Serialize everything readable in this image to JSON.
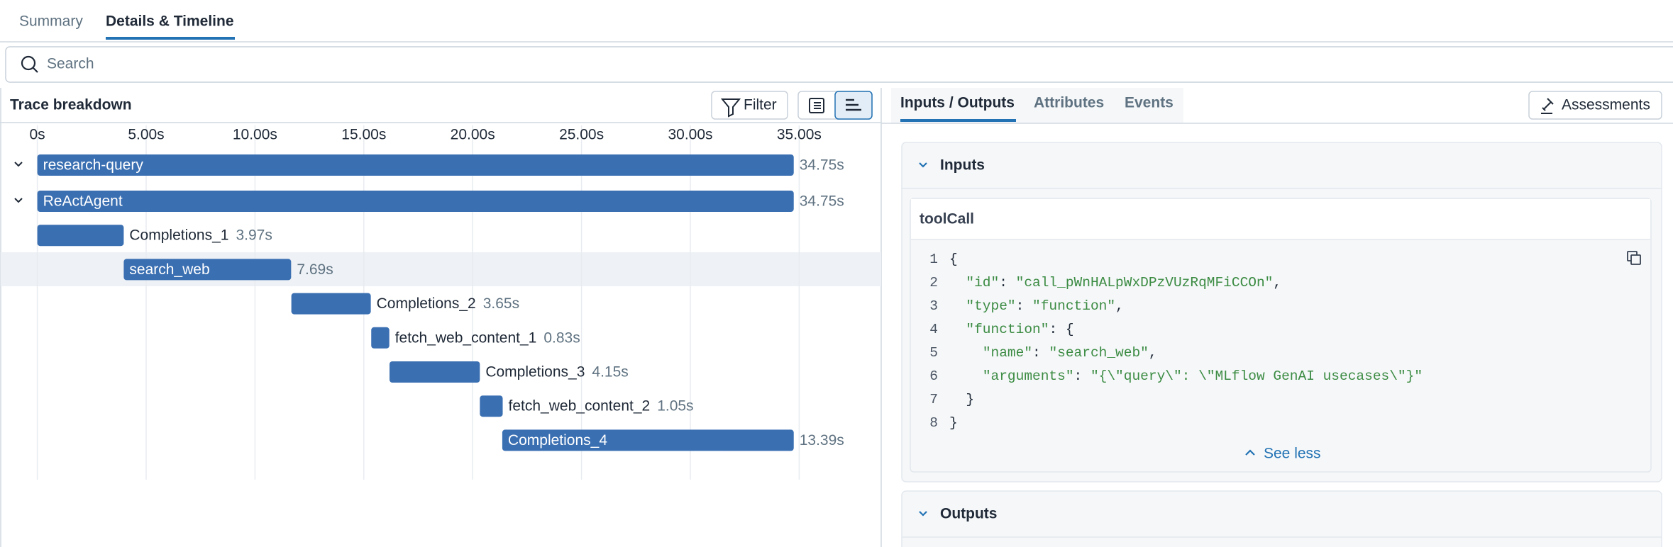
{
  "tabs": [
    "Summary",
    "Details & Timeline"
  ],
  "search_placeholder": "Search",
  "trace": {
    "title": "Trace breakdown",
    "filter": "Filter",
    "timeline": {
      "xlim": [
        0,
        38
      ],
      "xticks": [
        {
          "value": 0,
          "label": "0s"
        },
        {
          "value": 5,
          "label": "5.00s"
        },
        {
          "value": 10,
          "label": "10.00s"
        },
        {
          "value": 15,
          "label": "15.00s"
        },
        {
          "value": 20,
          "label": "20.00s"
        },
        {
          "value": 25,
          "label": "25.00s"
        },
        {
          "value": 30,
          "label": "30.00s"
        },
        {
          "value": 35,
          "label": "35.00s"
        }
      ],
      "spans": [
        {
          "name": "research-query",
          "start": 0,
          "duration": 34.75,
          "duration_label": "34.75s"
        },
        {
          "name": "ReActAgent",
          "start": 0,
          "duration": 34.75,
          "duration_label": "34.75s"
        },
        {
          "name": "Completions_1",
          "start": 0,
          "duration": 3.97,
          "duration_label": "3.97s"
        },
        {
          "name": "search_web",
          "start": 3.97,
          "duration": 7.69,
          "duration_label": "7.69s"
        },
        {
          "name": "Completions_2",
          "start": 11.67,
          "duration": 3.65,
          "duration_label": "3.65s"
        },
        {
          "name": "fetch_web_content_1",
          "start": 15.34,
          "duration": 0.83,
          "duration_label": "0.83s"
        },
        {
          "name": "Completions_3",
          "start": 16.18,
          "duration": 4.15,
          "duration_label": "4.15s"
        },
        {
          "name": "fetch_web_content_2",
          "start": 20.33,
          "duration": 1.05,
          "duration_label": "1.05s"
        },
        {
          "name": "Completions_4",
          "start": 21.36,
          "duration": 13.39,
          "duration_label": "13.39s"
        }
      ]
    }
  },
  "detail": {
    "tabs": [
      "Inputs / Outputs",
      "Attributes",
      "Events"
    ],
    "assessments": "Assessments",
    "inputs": {
      "title": "Inputs",
      "card_title": "toolCall",
      "code_lines": [
        {
          "number": 1,
          "text": "{"
        },
        {
          "number": 2,
          "text": "  \"id\": \"call_pWnHALpWxDPzVUzRqMFiCCOn\","
        },
        {
          "number": 3,
          "text": "  \"type\": \"function\","
        },
        {
          "number": 4,
          "text": "  \"function\": {"
        },
        {
          "number": 5,
          "text": "    \"name\": \"search_web\","
        },
        {
          "number": 6,
          "text": "    \"arguments\": \"{\\\"query\\\": \\\"MLflow GenAI usecases\\\"}\""
        },
        {
          "number": 7,
          "text": "  }"
        },
        {
          "number": 8,
          "text": "}"
        }
      ],
      "toggle": "See less"
    },
    "outputs": {
      "title": "Outputs"
    }
  }
}
